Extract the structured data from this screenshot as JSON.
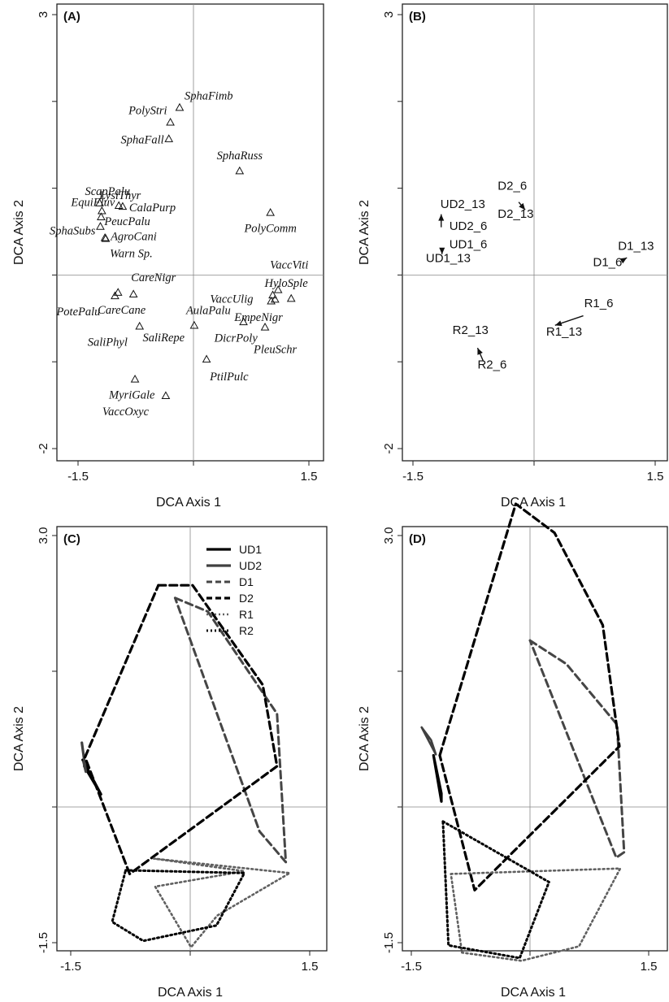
{
  "chart_data": [
    {
      "panel": "(A)",
      "type": "scatter",
      "xlabel": "DCA Axis 1",
      "ylabel": "DCA Axis 2",
      "xlim": [
        -1.5,
        1.5
      ],
      "ylim": [
        -2,
        3
      ],
      "x_ticks": [
        "-1.5",
        "1.5"
      ],
      "y_ticks": [
        "3",
        "-2"
      ],
      "marker": "triangle",
      "points": [
        {
          "label": "SphaFimb",
          "x": -0.18,
          "y": 1.93
        },
        {
          "label": "PolyStri",
          "x": -0.3,
          "y": 1.76
        },
        {
          "label": "SphaFall",
          "x": -0.32,
          "y": 1.57
        },
        {
          "label": "SphaRuss",
          "x": 0.6,
          "y": 1.2
        },
        {
          "label": "ScapPalu",
          "x": -1.22,
          "y": 0.83
        },
        {
          "label": "EquiFluv",
          "x": -1.19,
          "y": 0.74
        },
        {
          "label": "LysiThyr",
          "x": -0.97,
          "y": 0.8
        },
        {
          "label": "CalaPurp",
          "x": -0.92,
          "y": 0.79
        },
        {
          "label": "PeucPalu",
          "x": -1.2,
          "y": 0.67
        },
        {
          "label": "SphaSubs",
          "x": -1.21,
          "y": 0.56
        },
        {
          "label": "AgroCani",
          "x": -1.14,
          "y": 0.42
        },
        {
          "label": "Warn Sp.",
          "x": -1.15,
          "y": 0.43
        },
        {
          "label": "PolyComm",
          "x": 1.0,
          "y": 0.72
        },
        {
          "label": "VaccViti",
          "x": 1.1,
          "y": -0.17
        },
        {
          "label": "HyloSple",
          "x": 1.03,
          "y": -0.23
        },
        {
          "label": "CareNigr",
          "x": -0.98,
          "y": -0.2
        },
        {
          "label": "CareCane",
          "x": -0.78,
          "y": -0.22
        },
        {
          "label": "PotePalu",
          "x": -1.02,
          "y": -0.24
        },
        {
          "label": "VaccUlig",
          "x": 1.06,
          "y": -0.28
        },
        {
          "label": "EmpeNigr",
          "x": 1.27,
          "y": -0.27
        },
        {
          "label": "AulaPalu",
          "x": 0.01,
          "y": -0.58
        },
        {
          "label": "SaliPhyl",
          "x": -0.7,
          "y": -0.59
        },
        {
          "label": "SaliRepe",
          "x": 0.65,
          "y": -0.54
        },
        {
          "label": "PleuSchr",
          "x": 0.93,
          "y": -0.6
        },
        {
          "label": "DicrPoly",
          "x": 1.01,
          "y": -0.3
        },
        {
          "label": "PtilPulc",
          "x": 0.17,
          "y": -0.97
        },
        {
          "label": "MyriGale",
          "x": -0.76,
          "y": -1.2
        },
        {
          "label": "VaccOxyc",
          "x": -0.36,
          "y": -1.39
        }
      ]
    },
    {
      "panel": "(B)",
      "type": "scatter",
      "xlabel": "DCA Axis 1",
      "ylabel": "DCA Axis 2",
      "xlim": [
        -1.5,
        1.5
      ],
      "ylim": [
        -2,
        3
      ],
      "x_ticks": [
        "-1.5",
        "1.5"
      ],
      "y_ticks": [
        "3",
        "-2"
      ],
      "arrows": [
        {
          "from": "UD2_6",
          "to": "UD2_13",
          "x0": -1.15,
          "y0": 0.55,
          "x1": -1.15,
          "y1": 0.7
        },
        {
          "from": "UD1_13",
          "to": "UD1_6",
          "x0": -1.14,
          "y0": 0.31,
          "x1": -1.14,
          "y1": 0.24
        },
        {
          "from": "D2_6",
          "to": "D2_13",
          "x0": -0.19,
          "y0": 0.84,
          "x1": -0.11,
          "y1": 0.75
        },
        {
          "from": "D1_6",
          "to": "D1_13",
          "x0": 1.08,
          "y0": 0.16,
          "x1": 1.15,
          "y1": 0.2
        },
        {
          "from": "R1_6",
          "to": "R1_13",
          "x0": 0.61,
          "y0": -0.47,
          "x1": 0.26,
          "y1": -0.58
        },
        {
          "from": "R2_6",
          "to": "R2_13",
          "x0": -0.63,
          "y0": -0.99,
          "x1": -0.7,
          "y1": -0.84
        }
      ],
      "labels": [
        {
          "text": "UD2_13",
          "x": -1.16,
          "y": 0.77
        },
        {
          "text": "UD2_6",
          "x": -1.05,
          "y": 0.52
        },
        {
          "text": "UD1_6",
          "x": -1.05,
          "y": 0.31
        },
        {
          "text": "UD1_13",
          "x": -1.34,
          "y": 0.15
        },
        {
          "text": "D2_6",
          "x": -0.45,
          "y": 0.98
        },
        {
          "text": "D2_13",
          "x": -0.45,
          "y": 0.66
        },
        {
          "text": "D1_13",
          "x": 1.04,
          "y": 0.29
        },
        {
          "text": "D1_6",
          "x": 0.73,
          "y": 0.1
        },
        {
          "text": "R1_6",
          "x": 0.62,
          "y": -0.37
        },
        {
          "text": "R1_13",
          "x": 0.15,
          "y": -0.7
        },
        {
          "text": "R2_13",
          "x": -1.01,
          "y": -0.68
        },
        {
          "text": "R2_6",
          "x": -0.7,
          "y": -1.08
        }
      ]
    },
    {
      "panel": "(C)",
      "type": "line",
      "xlabel": "DCA Axis 1",
      "ylabel": "DCA Axis 2",
      "xlim": [
        -1.5,
        1.5
      ],
      "ylim": [
        -1.5,
        3.0
      ],
      "x_ticks": [
        "-1.5",
        "1.5"
      ],
      "y_ticks": [
        "3.0",
        "-1.5"
      ],
      "legend": "top-right",
      "series": [
        {
          "name": "UD1",
          "style": "solid",
          "color": "#000000",
          "width": 3.2,
          "points": [
            [
              -1.33,
              0.45
            ],
            [
              -1.12,
              0.14
            ],
            [
              -1.35,
              0.52
            ]
          ]
        },
        {
          "name": "UD2",
          "style": "solid",
          "color": "#404040",
          "width": 3.2,
          "points": [
            [
              -1.36,
              0.71
            ],
            [
              -1.31,
              0.39
            ],
            [
              -1.34,
              0.5
            ]
          ]
        },
        {
          "name": "D1",
          "style": "dashed",
          "color": "#454545",
          "width": 3,
          "points": [
            [
              -0.19,
              2.31
            ],
            [
              0.22,
              2.16
            ],
            [
              1.09,
              1.03
            ],
            [
              1.2,
              -0.61
            ],
            [
              0.87,
              -0.27
            ],
            [
              -0.19,
              2.31
            ]
          ]
        },
        {
          "name": "D2",
          "style": "dashed",
          "color": "#000000",
          "width": 3.2,
          "points": [
            [
              -0.4,
              2.45
            ],
            [
              0.03,
              2.45
            ],
            [
              0.91,
              1.35
            ],
            [
              1.09,
              0.45
            ],
            [
              -0.76,
              -0.74
            ],
            [
              -1.32,
              0.55
            ],
            [
              -0.4,
              2.45
            ]
          ]
        },
        {
          "name": "R1",
          "style": "dotted",
          "color": "#606060",
          "width": 2.6,
          "points": [
            [
              -0.46,
              -0.57
            ],
            [
              1.25,
              -0.73
            ],
            [
              0.34,
              -1.2
            ],
            [
              0.01,
              -1.55
            ],
            [
              -0.44,
              -0.88
            ],
            [
              0.68,
              -0.71
            ],
            [
              -0.46,
              -0.57
            ]
          ]
        },
        {
          "name": "R2",
          "style": "dotted",
          "color": "#000000",
          "width": 3,
          "points": [
            [
              -0.81,
              -0.7
            ],
            [
              0.68,
              -0.73
            ],
            [
              0.33,
              -1.31
            ],
            [
              -0.59,
              -1.48
            ],
            [
              -0.98,
              -1.27
            ],
            [
              -0.81,
              -0.7
            ]
          ]
        }
      ]
    },
    {
      "panel": "(D)",
      "type": "line",
      "xlabel": "DCA Axis 1",
      "ylabel": "DCA Axis 2",
      "xlim": [
        -1.5,
        1.5
      ],
      "ylim": [
        -1.5,
        3.0
      ],
      "x_ticks": [
        "-1.5",
        "1.5"
      ],
      "y_ticks": [
        "3.0",
        "-1.5"
      ],
      "series": [
        {
          "name": "UD1",
          "style": "solid",
          "color": "#000000",
          "width": 3.2,
          "points": [
            [
              -1.22,
              0.57
            ],
            [
              -1.12,
              0.06
            ],
            [
              -1.12,
              0.15
            ],
            [
              -1.22,
              0.57
            ]
          ]
        },
        {
          "name": "UD2",
          "style": "solid",
          "color": "#404040",
          "width": 2.6,
          "points": [
            [
              -1.37,
              0.88
            ],
            [
              -1.19,
              0.58
            ],
            [
              -1.25,
              0.74
            ],
            [
              -1.37,
              0.88
            ]
          ]
        },
        {
          "name": "D1",
          "style": "dashed",
          "color": "#454545",
          "width": 3,
          "points": [
            [
              0.0,
              1.84
            ],
            [
              0.46,
              1.58
            ],
            [
              1.1,
              0.91
            ],
            [
              1.19,
              -0.5
            ],
            [
              1.09,
              -0.56
            ],
            [
              0.0,
              1.84
            ]
          ]
        },
        {
          "name": "D2",
          "style": "dashed",
          "color": "#000000",
          "width": 3.2,
          "points": [
            [
              -1.14,
              0.57
            ],
            [
              -0.18,
              3.35
            ],
            [
              0.31,
              3.03
            ],
            [
              0.92,
              2.01
            ],
            [
              1.13,
              0.67
            ],
            [
              -0.7,
              -0.92
            ],
            [
              -1.14,
              0.57
            ]
          ]
        },
        {
          "name": "R1",
          "style": "dotted",
          "color": "#606060",
          "width": 2.6,
          "points": [
            [
              -1.0,
              -0.74
            ],
            [
              1.14,
              -0.68
            ],
            [
              0.62,
              -1.54
            ],
            [
              -0.11,
              -1.7
            ],
            [
              -0.86,
              -1.61
            ],
            [
              -1.0,
              -0.74
            ]
          ]
        },
        {
          "name": "R2",
          "style": "dotted",
          "color": "#000000",
          "width": 3,
          "points": [
            [
              -1.1,
              -0.16
            ],
            [
              0.24,
              -0.83
            ],
            [
              -0.13,
              -1.67
            ],
            [
              -1.03,
              -1.53
            ],
            [
              -1.1,
              -0.16
            ]
          ]
        }
      ]
    }
  ]
}
